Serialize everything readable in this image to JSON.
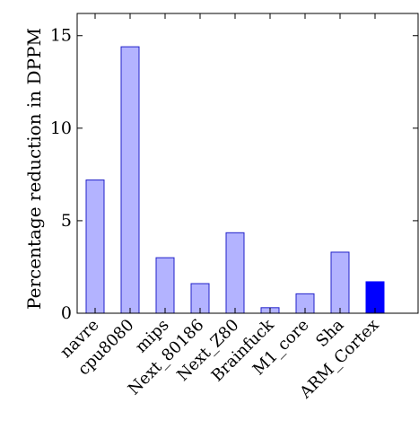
{
  "chart_data": {
    "type": "bar",
    "categories": [
      "navre",
      "cpu8080",
      "mips",
      "Next_80186",
      "Next_Z80",
      "Brainfuck",
      "M1_core",
      "Sha",
      "ARM_Cortex"
    ],
    "values": [
      7.2,
      14.4,
      3.0,
      1.6,
      4.35,
      0.3,
      1.05,
      3.3,
      1.7
    ],
    "highlight_index": 8,
    "title": "",
    "xlabel": "",
    "ylabel": "Percentage reduction in DPPM",
    "ylim": [
      0,
      16.2
    ],
    "yticks": [
      0,
      5,
      10,
      15
    ],
    "grid": false,
    "legend": "none",
    "colors": {
      "bar_fill": "#b3b3ff",
      "bar_stroke": "#2020c8",
      "highlight_fill": "#0000ff",
      "highlight_stroke": "#0000ff",
      "axis": "#000000"
    }
  }
}
